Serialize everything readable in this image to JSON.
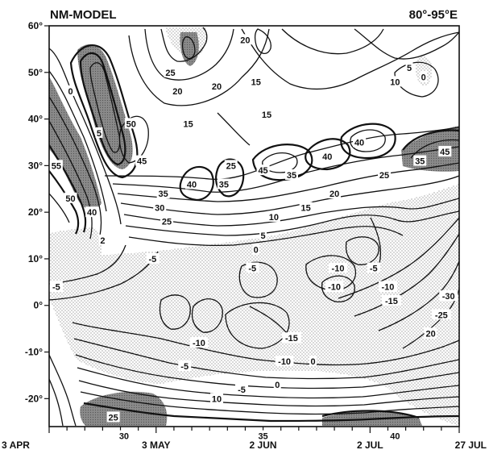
{
  "chart_data": {
    "type": "contour",
    "title_left": "NM-MODEL",
    "title_right": "80°-95°E",
    "x_tick_labels": [
      "3 APR",
      "3 MAY",
      "2 JUN",
      "2 JUL",
      "27 JUL"
    ],
    "x_ticks_days": [
      0,
      30,
      60,
      90,
      115
    ],
    "xlim": [
      0,
      115
    ],
    "y_tick_labels": [
      "60°",
      "50°",
      "40°",
      "30°",
      "20°",
      "10°",
      "0°",
      "-10°",
      "-20°"
    ],
    "y_ticks": [
      60,
      50,
      40,
      30,
      20,
      10,
      0,
      -10,
      -20
    ],
    "ylim": [
      -26,
      60
    ],
    "shading": "stippled where values are negative (easterly) and heavy shading for values of 45 and above",
    "contour_labels": [
      {
        "text": "20",
        "x": 55,
        "y": 57
      },
      {
        "text": "15",
        "x": 58,
        "y": 48
      },
      {
        "text": "5",
        "x": 101,
        "y": 51
      },
      {
        "text": "10",
        "x": 97,
        "y": 48
      },
      {
        "text": "0",
        "x": 105,
        "y": 49
      },
      {
        "text": "25",
        "x": 34,
        "y": 50
      },
      {
        "text": "20",
        "x": 36,
        "y": 46
      },
      {
        "text": "20",
        "x": 47,
        "y": 47
      },
      {
        "text": "15",
        "x": 61,
        "y": 41
      },
      {
        "text": "15",
        "x": 39,
        "y": 39
      },
      {
        "text": "0",
        "x": 6,
        "y": 46
      },
      {
        "text": "5",
        "x": 14,
        "y": 37
      },
      {
        "text": "50",
        "x": 23,
        "y": 39
      },
      {
        "text": "45",
        "x": 26,
        "y": 31
      },
      {
        "text": "55",
        "x": 2,
        "y": 30
      },
      {
        "text": "50",
        "x": 6,
        "y": 23
      },
      {
        "text": "40",
        "x": 12,
        "y": 20
      },
      {
        "text": "2",
        "x": 15,
        "y": 14
      },
      {
        "text": "35",
        "x": 32,
        "y": 24
      },
      {
        "text": "30",
        "x": 31,
        "y": 21
      },
      {
        "text": "25",
        "x": 33,
        "y": 18
      },
      {
        "text": "40",
        "x": 40,
        "y": 26
      },
      {
        "text": "25",
        "x": 51,
        "y": 30
      },
      {
        "text": "35",
        "x": 49,
        "y": 26
      },
      {
        "text": "45",
        "x": 60,
        "y": 29
      },
      {
        "text": "35",
        "x": 68,
        "y": 28
      },
      {
        "text": "40",
        "x": 78,
        "y": 32
      },
      {
        "text": "40",
        "x": 87,
        "y": 35
      },
      {
        "text": "25",
        "x": 94,
        "y": 28
      },
      {
        "text": "20",
        "x": 80,
        "y": 24
      },
      {
        "text": "15",
        "x": 72,
        "y": 21
      },
      {
        "text": "10",
        "x": 63,
        "y": 19
      },
      {
        "text": "5",
        "x": 60,
        "y": 15
      },
      {
        "text": "0",
        "x": 58,
        "y": 12
      },
      {
        "text": "-5",
        "x": 57,
        "y": 8
      },
      {
        "text": "-5",
        "x": 29,
        "y": 10
      },
      {
        "text": "35",
        "x": 104,
        "y": 31
      },
      {
        "text": "45",
        "x": 111,
        "y": 33
      },
      {
        "text": "-5",
        "x": 2,
        "y": 4
      },
      {
        "text": "-10",
        "x": 81,
        "y": 8
      },
      {
        "text": "-5",
        "x": 91,
        "y": 8
      },
      {
        "text": "-10",
        "x": 80,
        "y": 4
      },
      {
        "text": "-10",
        "x": 95,
        "y": 4
      },
      {
        "text": "-15",
        "x": 96,
        "y": 1
      },
      {
        "text": "-30",
        "x": 112,
        "y": 2
      },
      {
        "text": "-25",
        "x": 110,
        "y": -2
      },
      {
        "text": "20",
        "x": 107,
        "y": -6
      },
      {
        "text": "-10",
        "x": 42,
        "y": -8
      },
      {
        "text": "-5",
        "x": 38,
        "y": -13
      },
      {
        "text": "-15",
        "x": 68,
        "y": -7
      },
      {
        "text": "-10",
        "x": 66,
        "y": -12
      },
      {
        "text": "0",
        "x": 74,
        "y": -12
      },
      {
        "text": "0",
        "x": 64,
        "y": -17
      },
      {
        "text": "-5",
        "x": 54,
        "y": -18
      },
      {
        "text": "10",
        "x": 47,
        "y": -20
      },
      {
        "text": "25",
        "x": 18,
        "y": -24
      },
      {
        "text": "30",
        "x": 21,
        "y": -28
      },
      {
        "text": "35",
        "x": 60,
        "y": -28
      },
      {
        "text": "40",
        "x": 97,
        "y": -28
      }
    ]
  }
}
